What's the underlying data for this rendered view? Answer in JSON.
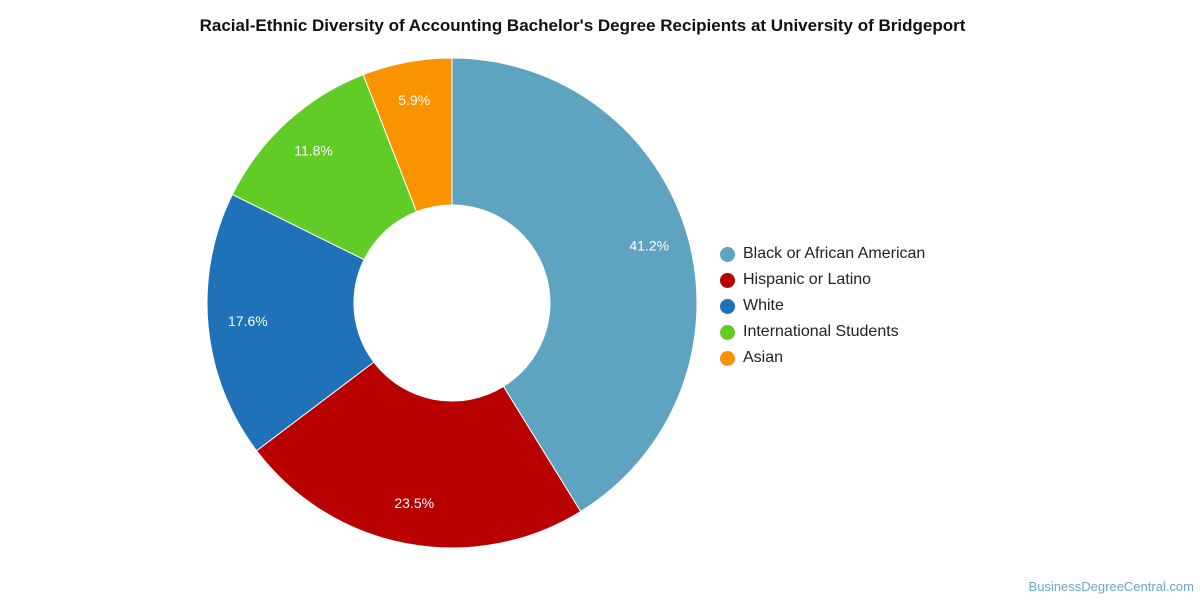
{
  "chart_data": {
    "type": "pie",
    "title": "Racial-Ethnic Diversity of Accounting Bachelor's Degree Recipients at University of Bridgeport",
    "donut": true,
    "legend_position": "right",
    "slices": [
      {
        "name": "Black or African American",
        "value": 41.2,
        "label": "41.2%",
        "color": "#5ea3c0"
      },
      {
        "name": "Hispanic or Latino",
        "value": 23.5,
        "label": "23.5%",
        "color": "#b80000"
      },
      {
        "name": "White",
        "value": 17.6,
        "label": "17.6%",
        "color": "#1f72b8"
      },
      {
        "name": "International Students",
        "value": 11.8,
        "label": "11.8%",
        "color": "#62cc27"
      },
      {
        "name": "Asian",
        "value": 5.9,
        "label": "5.9%",
        "color": "#f99400"
      }
    ]
  },
  "credit": "BusinessDegreeCentral.com"
}
